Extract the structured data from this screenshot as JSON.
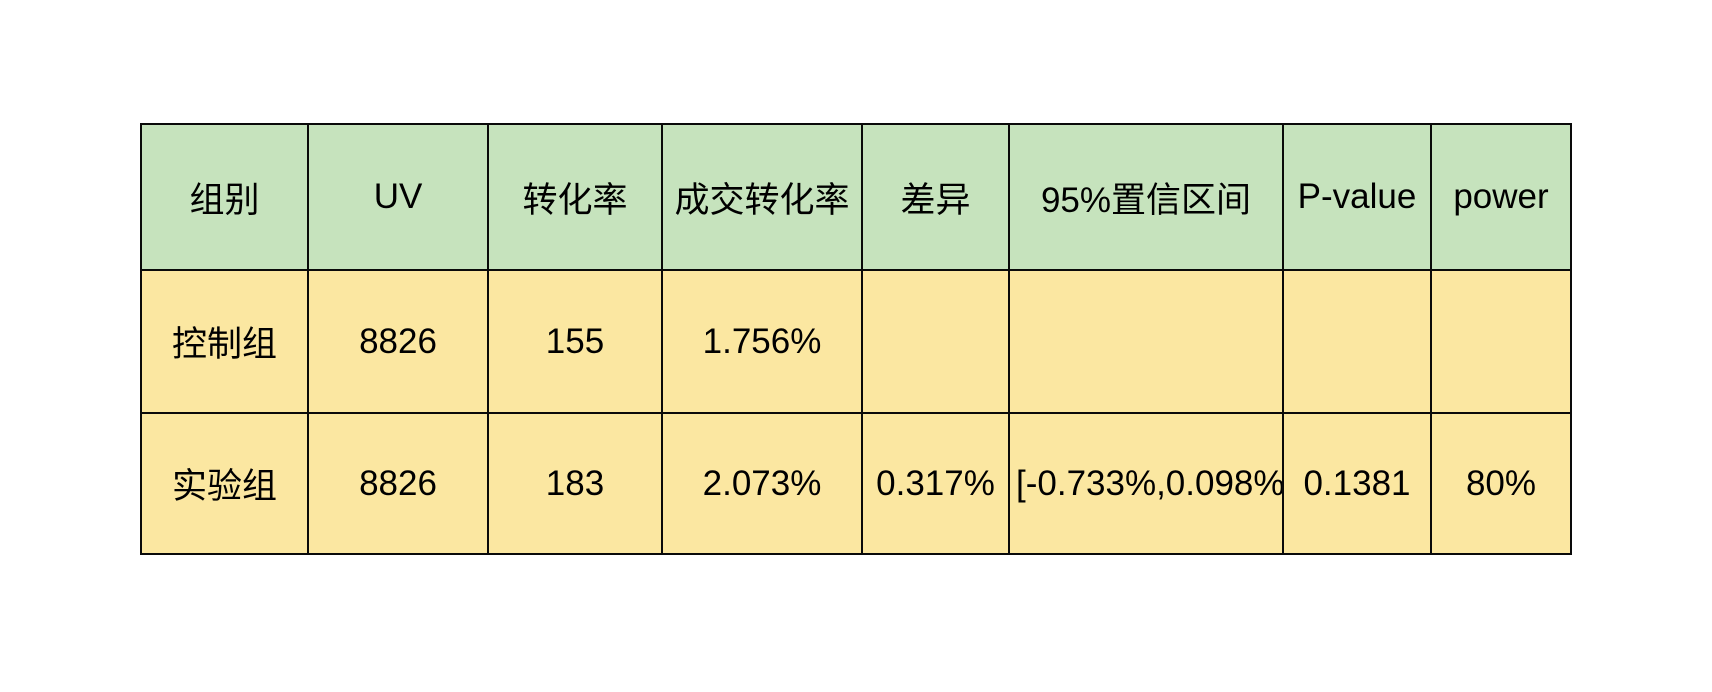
{
  "chart_data": {
    "type": "table",
    "title": "",
    "columns": [
      "组别",
      "UV",
      "转化率",
      "成交转化率",
      "差异",
      "95%置信区间",
      "P-value",
      "power"
    ],
    "rows": [
      [
        "控制组",
        "8826",
        "155",
        "1.756%",
        "",
        "",
        "",
        ""
      ],
      [
        "实验组",
        "8826",
        "183",
        "2.073%",
        "0.317%",
        "[-0.733%,0.098%]",
        "0.1381",
        "80%"
      ]
    ]
  },
  "colors": {
    "header_bg": "#c6e3bd",
    "body_bg": "#fbe7a1",
    "border": "#0a0a0a",
    "text": "#000000",
    "page_bg": "#ffffff"
  }
}
